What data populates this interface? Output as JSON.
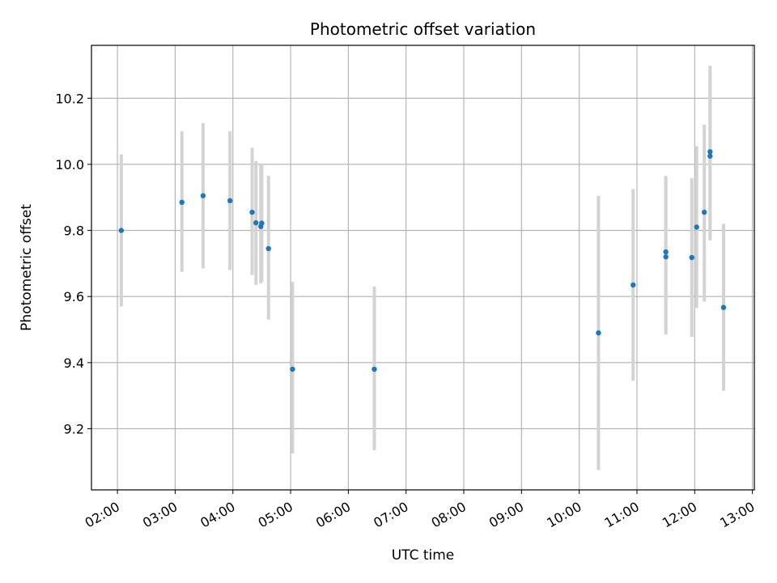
{
  "chart_data": {
    "type": "scatter",
    "title": "Photometric offset variation",
    "xlabel": "UTC time",
    "ylabel": "Photometric offset",
    "x_ticks": [
      "02:00",
      "03:00",
      "04:00",
      "05:00",
      "06:00",
      "07:00",
      "08:00",
      "09:00",
      "10:00",
      "11:00",
      "12:00",
      "13:00"
    ],
    "xlim": [
      "01:33",
      "13:02"
    ],
    "y_ticks": [
      "9.2",
      "9.4",
      "9.6",
      "9.8",
      "10.0",
      "10.2"
    ],
    "ylim": [
      9.015,
      10.36
    ],
    "grid": true,
    "colors": {
      "point": "#1f77b4",
      "errorbar": "#d3d3d3",
      "grid": "#b0b0b0"
    },
    "points": [
      {
        "t": "02:04",
        "y": 9.8,
        "yerr_low": 9.57,
        "yerr_high": 10.03
      },
      {
        "t": "03:07",
        "y": 9.885,
        "yerr_low": 9.675,
        "yerr_high": 10.1
      },
      {
        "t": "03:29",
        "y": 9.905,
        "yerr_low": 9.685,
        "yerr_high": 10.125
      },
      {
        "t": "03:57",
        "y": 9.89,
        "yerr_low": 9.68,
        "yerr_high": 10.1
      },
      {
        "t": "04:20",
        "y": 9.855,
        "yerr_low": 9.665,
        "yerr_high": 10.05
      },
      {
        "t": "04:24",
        "y": 9.823,
        "yerr_low": 9.635,
        "yerr_high": 10.01
      },
      {
        "t": "04:29",
        "y": 9.812,
        "yerr_low": 9.64,
        "yerr_high": 10.0
      },
      {
        "t": "04:30",
        "y": 9.822,
        "yerr_low": 9.645,
        "yerr_high": 10.0
      },
      {
        "t": "04:37",
        "y": 9.745,
        "yerr_low": 9.53,
        "yerr_high": 9.965
      },
      {
        "t": "05:02",
        "y": 9.38,
        "yerr_low": 9.125,
        "yerr_high": 9.645
      },
      {
        "t": "06:27",
        "y": 9.38,
        "yerr_low": 9.135,
        "yerr_high": 9.63
      },
      {
        "t": "10:20",
        "y": 9.49,
        "yerr_low": 9.075,
        "yerr_high": 9.905
      },
      {
        "t": "10:56",
        "y": 9.635,
        "yerr_low": 9.345,
        "yerr_high": 9.925
      },
      {
        "t": "11:30",
        "y": 9.735,
        "yerr_low": 9.485,
        "yerr_high": 9.965
      },
      {
        "t": "11:30",
        "y": 9.72,
        "yerr_low": 9.49,
        "yerr_high": 9.96
      },
      {
        "t": "11:57",
        "y": 9.718,
        "yerr_low": 9.478,
        "yerr_high": 9.958
      },
      {
        "t": "12:02",
        "y": 9.81,
        "yerr_low": 9.565,
        "yerr_high": 10.055
      },
      {
        "t": "12:10",
        "y": 9.855,
        "yerr_low": 9.585,
        "yerr_high": 10.12
      },
      {
        "t": "12:16",
        "y": 10.038,
        "yerr_low": 9.775,
        "yerr_high": 10.298
      },
      {
        "t": "12:16",
        "y": 10.025,
        "yerr_low": 9.77,
        "yerr_high": 10.28
      },
      {
        "t": "12:30",
        "y": 9.567,
        "yerr_low": 9.315,
        "yerr_high": 9.82
      }
    ]
  }
}
